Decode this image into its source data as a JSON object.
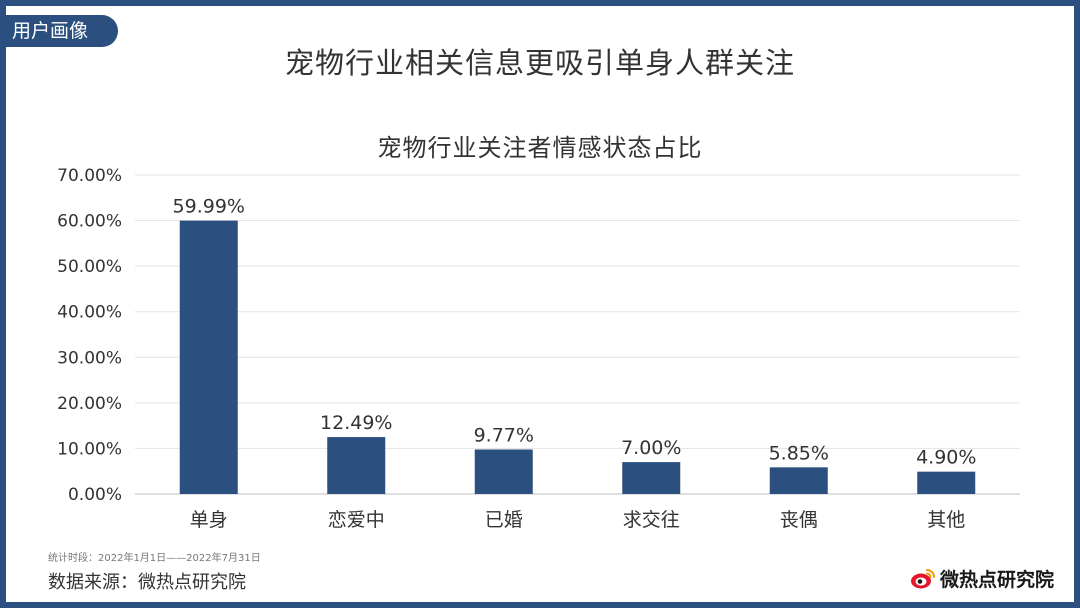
{
  "section_tag": "用户画像",
  "headline": "宠物行业相关信息更吸引单身人群关注",
  "chart_data": {
    "type": "bar",
    "title": "宠物行业关注者情感状态占比",
    "categories": [
      "单身",
      "恋爱中",
      "已婚",
      "求交往",
      "丧偶",
      "其他"
    ],
    "values": [
      59.99,
      12.49,
      9.77,
      7.0,
      5.85,
      4.9
    ],
    "value_labels": [
      "59.99%",
      "12.49%",
      "9.77%",
      "7.00%",
      "5.85%",
      "4.90%"
    ],
    "ylim": [
      0,
      70
    ],
    "yticks": [
      0,
      10,
      20,
      30,
      40,
      50,
      60,
      70
    ],
    "ytick_labels": [
      "0.00%",
      "10.00%",
      "20.00%",
      "30.00%",
      "40.00%",
      "50.00%",
      "60.00%",
      "70.00%"
    ],
    "grid": true,
    "bar_color": "#2b4f7e"
  },
  "footnote": "统计时段：2022年1月1日——2022年7月31日",
  "source": "数据来源：微热点研究院",
  "brand": {
    "name": "微热点研究院",
    "icon": "weibo-eye-icon"
  },
  "colors": {
    "frame": "#2b4f7e",
    "accent": "#2b4f7e",
    "logo_red": "#e6162d"
  }
}
